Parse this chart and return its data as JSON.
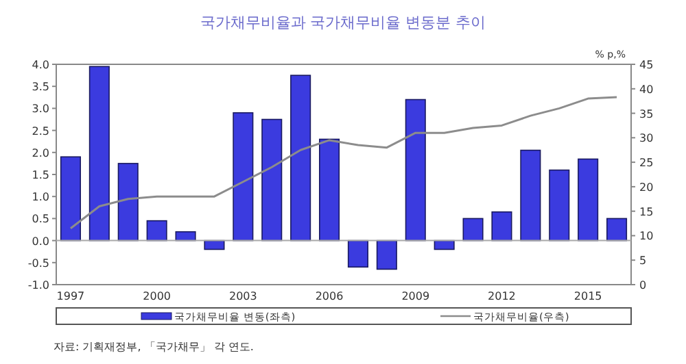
{
  "chart_data": {
    "type": "bar",
    "title": "국가채무비율과 국가채무비율 변동분 추이",
    "categories": [
      "1997",
      null,
      null,
      "2000",
      null,
      null,
      "2003",
      null,
      null,
      "2006",
      null,
      null,
      "2009",
      null,
      null,
      "2012",
      null,
      null,
      "2015",
      null
    ],
    "series": [
      {
        "name": "국가채무비율 변동(좌측)",
        "color": "#3b3bdf",
        "values": [
          1.9,
          3.95,
          1.75,
          0.45,
          0.2,
          -0.2,
          2.9,
          2.75,
          3.75,
          2.3,
          -0.6,
          -0.65,
          3.2,
          -0.2,
          0.5,
          0.65,
          2.05,
          1.6,
          1.85,
          0.5
        ]
      },
      {
        "name": "국가채무비율(우측)",
        "type": "line",
        "axis": "y2",
        "color": "#8c8c8c",
        "values": [
          11.5,
          16,
          17.5,
          18,
          18,
          18,
          21,
          24,
          27.5,
          29.5,
          28.5,
          28,
          31,
          31,
          32,
          32.5,
          34.5,
          36,
          38,
          38.3
        ]
      }
    ],
    "ylim": [
      -1,
      4
    ],
    "yticks": [
      {
        "value": -1,
        "label": "-1.0"
      },
      {
        "value": -0.5,
        "label": "-0.5"
      },
      {
        "value": 0,
        "label": "0.0"
      },
      {
        "value": 0.5,
        "label": "0.5"
      },
      {
        "value": 1,
        "label": "1.0"
      },
      {
        "value": 1.5,
        "label": "1.5"
      },
      {
        "value": 2,
        "label": "2.0"
      },
      {
        "value": 2.5,
        "label": "2.5"
      },
      {
        "value": 3,
        "label": "3.0"
      },
      {
        "value": 3.5,
        "label": "3.5"
      },
      {
        "value": 4,
        "label": "4.0"
      }
    ],
    "y2lim": [
      0,
      45
    ],
    "y2ticks": [
      0,
      5,
      10,
      15,
      20,
      25,
      30,
      35,
      40,
      45
    ],
    "y2label": "% p,%",
    "legend": "bottom",
    "grid": false,
    "ref_lines": [
      {
        "axis": "y",
        "value": 0,
        "color": "#aaaaaa"
      }
    ],
    "annotations": [
      "자료: 기획재정부, 「국가채무」 각 연도."
    ]
  }
}
